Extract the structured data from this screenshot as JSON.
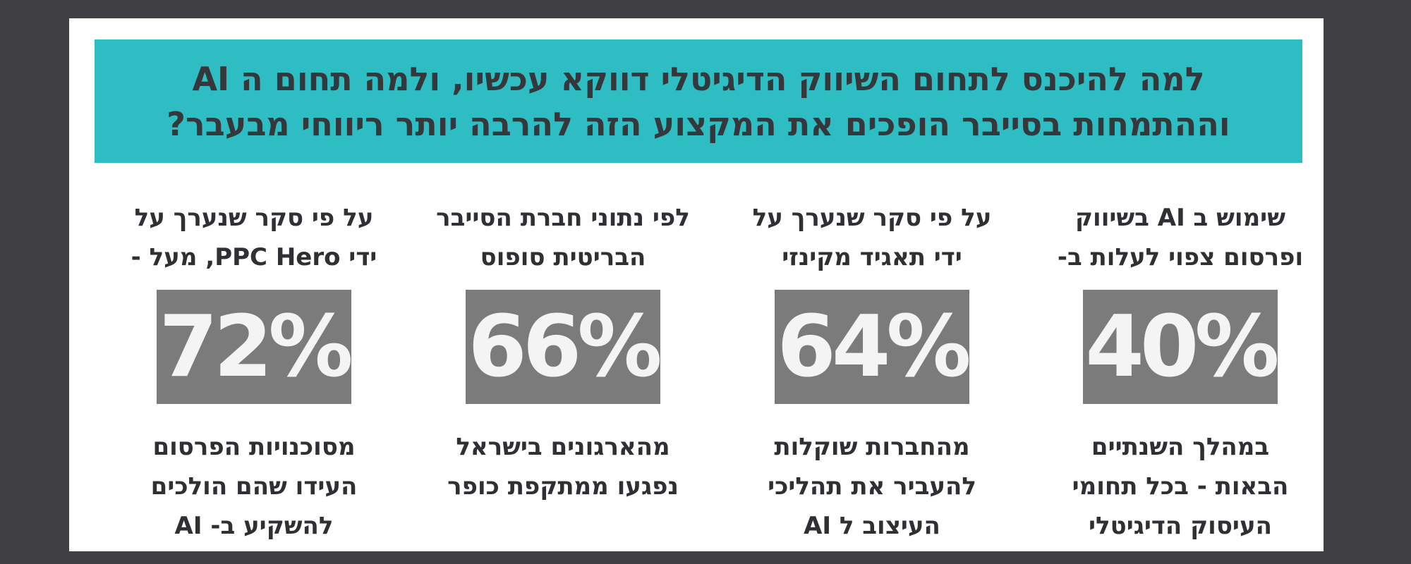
{
  "banner": {
    "line1": "למה להיכנס לתחום השיווק הדיגיטלי דווקא עכשיו, ולמה תחום ה AI",
    "line2": "וההתמחות בסייבר הופכים את המקצוע הזה להרבה יותר ריווחי מבעבר?"
  },
  "stats": [
    {
      "top1": "שימוש ב AI בשיווק",
      "top2": "ופרסום צפוי לעלות ב-",
      "value": "40%",
      "bottom1": "במהלך השנתיים",
      "bottom2": "הבאות - בכל תחומי",
      "bottom3": "העיסוק הדיגיטלי"
    },
    {
      "top1": "על פי סקר שנערך על",
      "top2": "ידי תאגיד מקינזי",
      "value": "64%",
      "bottom1": "מהחברות שוקלות",
      "bottom2": "להעביר את תהליכי",
      "bottom3": "העיצוב ל AI"
    },
    {
      "top1": "לפי נתוני חברת הסייבר",
      "top2": "הבריטית סופוס",
      "value": "66%",
      "bottom1": "מהארגונים בישראל",
      "bottom2": "נפגעו ממתקפת כופר",
      "bottom3": ""
    },
    {
      "top1": "על פי סקר שנערך על",
      "top2": "ידי PPC Hero, מעל -",
      "value": "72%",
      "bottom1": "מסוכנויות הפרסום",
      "bottom2": "העידו שהם הולכים",
      "bottom3": "להשקיע ב- AI"
    }
  ],
  "colors": {
    "background": "#403f44",
    "banner": "#2dbdc3",
    "box": "#7b7b7b",
    "text": "#2f3033"
  }
}
